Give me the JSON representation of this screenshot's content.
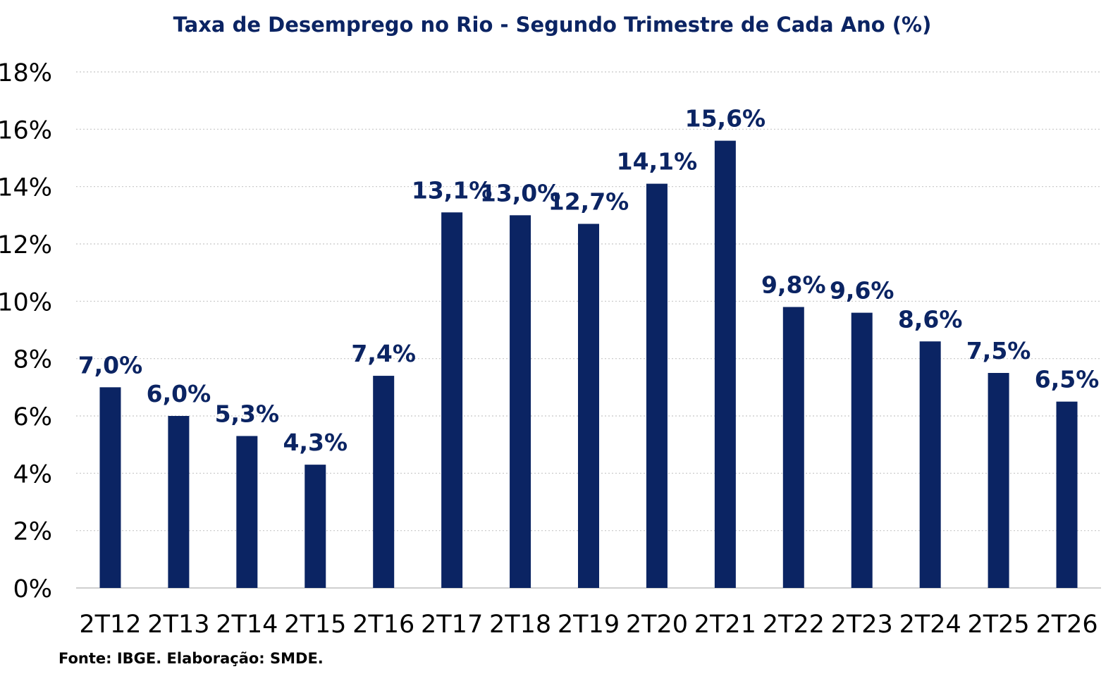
{
  "chart_data": {
    "type": "bar",
    "title": "Taxa de Desemprego no Rio - Segundo Trimestre de Cada Ano (%)",
    "categories": [
      "2T12",
      "2T13",
      "2T14",
      "2T15",
      "2T16",
      "2T17",
      "2T18",
      "2T19",
      "2T20",
      "2T21",
      "2T22",
      "2T23",
      "2T24",
      "2T25",
      "2T26"
    ],
    "values": [
      7.0,
      6.0,
      5.3,
      4.3,
      7.4,
      13.1,
      13.0,
      12.7,
      14.1,
      15.6,
      9.8,
      9.6,
      8.6,
      7.5,
      6.5
    ],
    "data_labels": [
      "7,0%",
      "6,0%",
      "5,3%",
      "4,3%",
      "7,4%",
      "13,1%",
      "13,0%",
      "12,7%",
      "14,1%",
      "15,6%",
      "9,8%",
      "9,6%",
      "8,6%",
      "7,5%",
      "6,5%"
    ],
    "y_ticks": [
      0,
      2,
      4,
      6,
      8,
      10,
      12,
      14,
      16,
      18
    ],
    "y_tick_labels": [
      "0%",
      "2%",
      "4%",
      "6%",
      "8%",
      "10%",
      "12%",
      "14%",
      "16%",
      "18%"
    ],
    "ylim": [
      0,
      18
    ],
    "xlabel": "",
    "ylabel": "",
    "grid": true,
    "legend": "none",
    "bar_color": "#0b2463",
    "label_color": "#0b2463",
    "grid_color": "#c8c8c8"
  },
  "footer": {
    "source": "Fonte: IBGE. Elaboração: SMDE."
  }
}
